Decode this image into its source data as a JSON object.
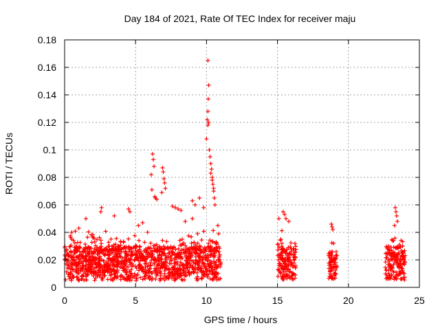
{
  "chart_data": {
    "type": "scatter",
    "title": "Day 184 of 2021, Rate Of TEC Index for receiver maju",
    "xlabel": "GPS time / hours",
    "ylabel": "ROTI / TECUs",
    "xlim": [
      0,
      25
    ],
    "ylim": [
      0,
      0.18
    ],
    "xticks": [
      0,
      5,
      10,
      15,
      20,
      25
    ],
    "yticks": [
      0,
      0.02,
      0.04,
      0.06,
      0.08,
      0.1,
      0.12,
      0.14,
      0.16,
      0.18
    ],
    "grid": true,
    "marker": "+",
    "color": "#ff0000",
    "series": [
      {
        "name": "ROTI",
        "clusters": [
          {
            "x": [
              0.0,
              11.0
            ],
            "base": [
              0.005,
              0.03
            ],
            "spread": 0.012
          },
          {
            "x": [
              15.0,
              16.3
            ],
            "base": [
              0.005,
              0.03
            ],
            "spread": 0.012
          },
          {
            "x": [
              18.6,
              19.2
            ],
            "base": [
              0.006,
              0.025
            ],
            "spread": 0.01
          },
          {
            "x": [
              22.6,
              24.0
            ],
            "base": [
              0.005,
              0.03
            ],
            "spread": 0.012
          }
        ],
        "points": [
          [
            10.1,
            0.165
          ],
          [
            10.15,
            0.147
          ],
          [
            10.12,
            0.137
          ],
          [
            10.1,
            0.128
          ],
          [
            10.05,
            0.122
          ],
          [
            10.1,
            0.118
          ],
          [
            10.15,
            0.12
          ],
          [
            10.0,
            0.108
          ],
          [
            10.2,
            0.1
          ],
          [
            10.25,
            0.095
          ],
          [
            10.3,
            0.09
          ],
          [
            10.35,
            0.086
          ],
          [
            10.4,
            0.08
          ],
          [
            10.45,
            0.075
          ],
          [
            10.5,
            0.07
          ],
          [
            10.55,
            0.065
          ],
          [
            10.6,
            0.06
          ],
          [
            10.4,
            0.078
          ],
          [
            10.5,
            0.072
          ],
          [
            10.3,
            0.083
          ],
          [
            6.2,
            0.097
          ],
          [
            6.25,
            0.093
          ],
          [
            6.3,
            0.088
          ],
          [
            6.1,
            0.082
          ],
          [
            6.15,
            0.071
          ],
          [
            6.35,
            0.066
          ],
          [
            6.4,
            0.065
          ],
          [
            6.5,
            0.064
          ],
          [
            6.9,
            0.087
          ],
          [
            6.95,
            0.084
          ],
          [
            7.0,
            0.079
          ],
          [
            7.05,
            0.076
          ],
          [
            7.1,
            0.072
          ],
          [
            6.85,
            0.069
          ],
          [
            7.6,
            0.059
          ],
          [
            7.8,
            0.058
          ],
          [
            8.0,
            0.057
          ],
          [
            8.2,
            0.056
          ],
          [
            9.0,
            0.063
          ],
          [
            9.2,
            0.06
          ],
          [
            9.5,
            0.065
          ],
          [
            9.8,
            0.058
          ],
          [
            2.6,
            0.058
          ],
          [
            2.55,
            0.055
          ],
          [
            4.5,
            0.057
          ],
          [
            4.6,
            0.055
          ],
          [
            3.5,
            0.052
          ],
          [
            1.5,
            0.05
          ],
          [
            15.1,
            0.05
          ],
          [
            15.4,
            0.055
          ],
          [
            15.5,
            0.053
          ],
          [
            15.6,
            0.05
          ],
          [
            15.8,
            0.048
          ],
          [
            18.8,
            0.046
          ],
          [
            18.85,
            0.044
          ],
          [
            18.9,
            0.042
          ],
          [
            23.3,
            0.058
          ],
          [
            23.35,
            0.055
          ],
          [
            23.4,
            0.052
          ],
          [
            23.45,
            0.048
          ],
          [
            23.25,
            0.045
          ],
          [
            0.5,
            0.04
          ],
          [
            1.0,
            0.043
          ],
          [
            5.2,
            0.045
          ],
          [
            5.5,
            0.047
          ],
          [
            8.5,
            0.048
          ],
          [
            9.0,
            0.05
          ],
          [
            10.8,
            0.045
          ]
        ]
      }
    ]
  }
}
